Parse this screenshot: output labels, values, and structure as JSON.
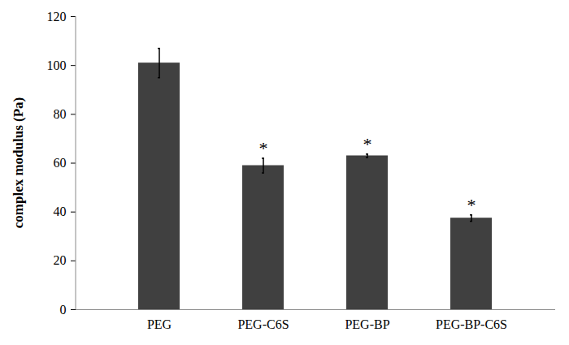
{
  "chart_data": {
    "type": "bar",
    "y_label": "complex modulus (Pa)",
    "categories": [
      "PEG",
      "PEG-C6S",
      "PEG-BP",
      "PEG-BP-C6S"
    ],
    "values": [
      101,
      59,
      63,
      37.5
    ],
    "errors": [
      6,
      3,
      0.7,
      1.3
    ],
    "color": "#404040",
    "ylim": [
      0,
      120
    ],
    "yticks": [
      0,
      20,
      40,
      60,
      80,
      100,
      120
    ],
    "grid": false,
    "annotations": [
      {
        "category": "PEG-C6S",
        "text": "*"
      },
      {
        "category": "PEG-BP",
        "text": "*"
      },
      {
        "category": "PEG-BP-C6S",
        "text": "*"
      }
    ]
  }
}
